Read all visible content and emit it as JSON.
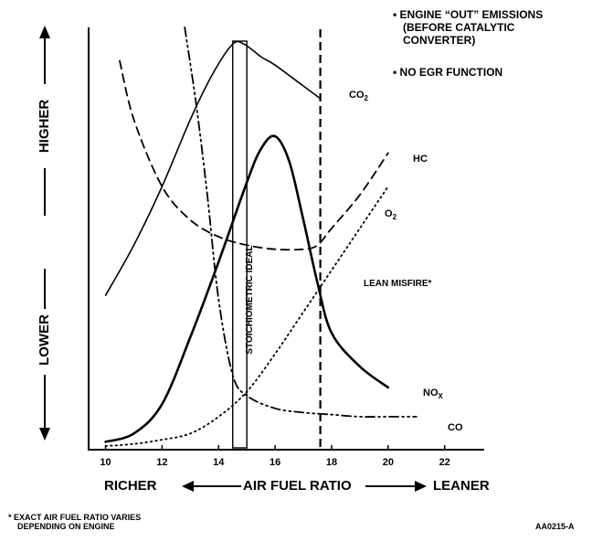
{
  "notes": {
    "line1": "• ENGINE “OUT” EMISSIONS",
    "line2": "(BEFORE CATALYTIC",
    "line3": "CONVERTER)",
    "line4": "• NO EGR FUNCTION"
  },
  "footnote": {
    "line1": "* EXACT AIR FUEL RATIO VARIES",
    "line2": "DEPENDING ON ENGINE"
  },
  "figure_code": "AA0215-A",
  "y_axis": {
    "high": "HIGHER",
    "low": "LOWER"
  },
  "x_axis": {
    "left": "RICHER",
    "center": "AIR FUEL RATIO",
    "right": "LEANER"
  },
  "annotations": {
    "stoich": "STOICHIOMETRIC IDEAL",
    "lean_misfire": "LEAN MISFIRE*"
  },
  "chart_data": {
    "type": "line",
    "xlabel": "AIR FUEL RATIO",
    "ylabel": "",
    "xlim": [
      9.4,
      23.4
    ],
    "x_ticks": [
      "10",
      "12",
      "14",
      "16",
      "18",
      "20",
      "22"
    ],
    "ylim": [
      0,
      100
    ],
    "grid": false,
    "stoichiometric_band": [
      14.5,
      15.0
    ],
    "lean_misfire_x": 17.6,
    "series": [
      {
        "name": "CO2",
        "label": "CO",
        "label_sub": "2",
        "style": "solid",
        "x": [
          10,
          11,
          12,
          13,
          13.8,
          14.5,
          14.9,
          15.5,
          16,
          17,
          17.6
        ],
        "y": [
          36,
          48,
          62,
          78,
          89,
          96,
          96,
          93,
          91,
          86,
          83
        ]
      },
      {
        "name": "NOX",
        "label": "NO",
        "label_sub": "X",
        "style": "solid-bold",
        "x": [
          10,
          11,
          12,
          13,
          14,
          15,
          15.5,
          16,
          16.5,
          17,
          17.5,
          18,
          19,
          20
        ],
        "y": [
          1,
          3,
          10,
          26,
          44,
          63,
          71,
          74,
          68,
          54,
          39,
          27,
          19,
          14
        ]
      },
      {
        "name": "HC",
        "label": "HC",
        "label_sub": "",
        "style": "dashed",
        "x": [
          10.5,
          11,
          12,
          13,
          14,
          15,
          16,
          17,
          17.5,
          18,
          19,
          20
        ],
        "y": [
          92,
          78,
          62,
          54,
          50,
          48,
          47,
          47,
          48,
          52,
          60,
          70
        ]
      },
      {
        "name": "O2",
        "label": "O",
        "label_sub": "2",
        "style": "dotted",
        "x": [
          10,
          11,
          12,
          13,
          14,
          15,
          16,
          17,
          18,
          19,
          20
        ],
        "y": [
          0,
          0.5,
          1.5,
          3,
          7,
          13,
          22,
          32,
          42,
          52,
          62
        ]
      },
      {
        "name": "CO",
        "label": "CO",
        "label_sub": "",
        "style": "dash-dot",
        "x": [
          12.8,
          13.2,
          13.6,
          14,
          14.5,
          15,
          16,
          17,
          18,
          19,
          20,
          21
        ],
        "y": [
          100,
          82,
          60,
          35,
          17,
          12,
          9,
          8,
          7.5,
          7,
          7,
          7
        ]
      }
    ]
  }
}
